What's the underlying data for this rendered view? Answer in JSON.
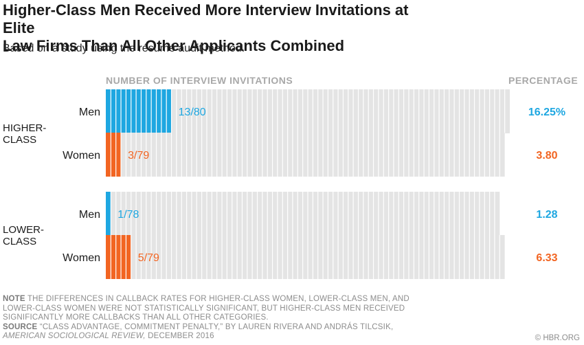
{
  "title_line1": "Higher-Class Men Received More Interview Invitations at Elite",
  "title_line2": "Law Firms Than All Other Applicants Combined",
  "subtitle": "Based on a study using the résumé audit method.",
  "column_header_left": "NUMBER OF INTERVIEW INVITATIONS",
  "column_header_right": "PERCENTAGE",
  "group1_label_line1": "HIGHER-",
  "group1_label_line2": "CLASS",
  "group2_label_line1": "LOWER-",
  "group2_label_line2": "CLASS",
  "note_label": "NOTE",
  "note_text": "THE DIFFERENCES IN CALLBACK RATES FOR HIGHER-CLASS WOMEN, LOWER-CLASS MEN, AND LOWER-CLASS WOMEN WERE NOT STATISTICALLY SIGNIFICANT, BUT HIGHER-CLASS MEN RECEIVED SIGNIFICANTLY MORE CALLBACKS THAN ALL OTHER CATEGORIES.",
  "source_label": "SOURCE",
  "source_text": "“CLASS ADVANTAGE, COMMITMENT PENALTY,” BY LAUREN RIVERA AND ANDRÁS TILCSIK,",
  "source_journal": "AMERICAN SOCIOLOGICAL REVIEW,",
  "source_date": "DECEMBER 2016",
  "credit": "© HBR.ORG",
  "colors": {
    "men": "#1ea7e1",
    "women": "#f26522",
    "empty": "#e4e4e4",
    "divider": "#ffffff"
  },
  "chart_data": {
    "type": "bar",
    "unit": "interview invitations out of applications",
    "rows": [
      {
        "group": "HIGHER-CLASS",
        "gender": "Men",
        "invited": 13,
        "total": 80,
        "label": "13/80",
        "percentage": "16.25%",
        "color": "men"
      },
      {
        "group": "HIGHER-CLASS",
        "gender": "Women",
        "invited": 3,
        "total": 79,
        "label": "3/79",
        "percentage": "3.80",
        "color": "women"
      },
      {
        "group": "LOWER-CLASS",
        "gender": "Men",
        "invited": 1,
        "total": 78,
        "label": "1/78",
        "percentage": "1.28",
        "color": "men"
      },
      {
        "group": "LOWER-CLASS",
        "gender": "Women",
        "invited": 5,
        "total": 79,
        "label": "5/79",
        "percentage": "6.33",
        "color": "women"
      }
    ]
  }
}
